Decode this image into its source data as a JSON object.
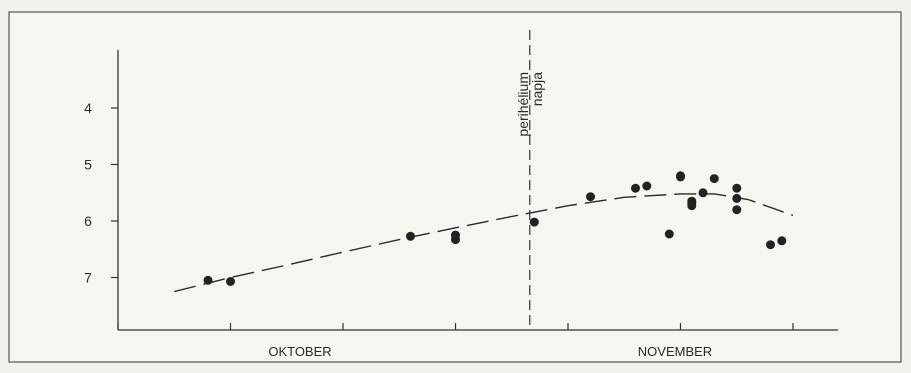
{
  "chart_data": {
    "type": "scatter",
    "title": "",
    "xlabel": "",
    "ylabel": "",
    "x_category_labels": [
      "OKTOBER",
      "NOVEMBER"
    ],
    "y_ticks": [
      4,
      5,
      6,
      7
    ],
    "ylim": [
      3.0,
      7.9
    ],
    "y_inverted": true,
    "xlim": [
      0,
      64
    ],
    "x_units": "days from start of axis",
    "grid": false,
    "perihelion": {
      "x": 36.6,
      "label_line1": "perihélium",
      "label_line2": "napja"
    },
    "series": [
      {
        "type": "scatter",
        "x": [
          8,
          10,
          26,
          30,
          30,
          37,
          42,
          46,
          47,
          50,
          51,
          51,
          51,
          52,
          53,
          55,
          55,
          55,
          58,
          59,
          49,
          50
        ],
        "y": [
          7.05,
          7.07,
          6.27,
          6.25,
          6.33,
          6.02,
          5.57,
          5.42,
          5.38,
          5.22,
          5.73,
          5.68,
          5.65,
          5.5,
          5.25,
          5.42,
          5.6,
          5.8,
          6.42,
          6.35,
          6.23,
          5.2
        ]
      },
      {
        "type": "line",
        "style": "dashed",
        "x": [
          5,
          10,
          15,
          20,
          25,
          30,
          35,
          40,
          45,
          50,
          53,
          56,
          60
        ],
        "y": [
          7.25,
          7.0,
          6.78,
          6.55,
          6.33,
          6.12,
          5.92,
          5.73,
          5.58,
          5.52,
          5.52,
          5.62,
          5.9
        ]
      }
    ]
  }
}
